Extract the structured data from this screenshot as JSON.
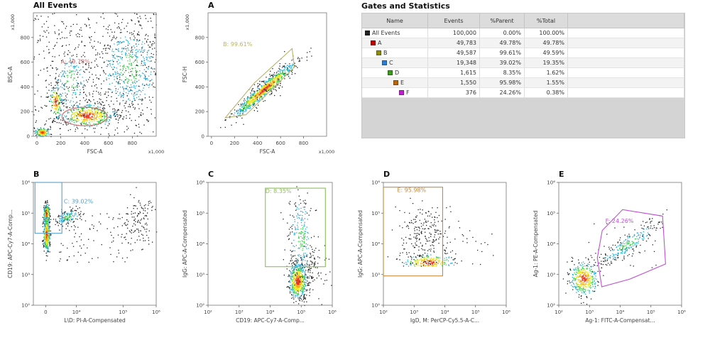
{
  "stats_panel": {
    "title": "Gates and Statistics",
    "columns": [
      "Name",
      "Events",
      "%Parent",
      "%Total"
    ],
    "rows": [
      {
        "name": "All Events",
        "color": "#222222",
        "level": 0,
        "events": "100,000",
        "parent": "0.00%",
        "total": "100.00%"
      },
      {
        "name": "A",
        "color": "#c00000",
        "level": 1,
        "events": "49,783",
        "parent": "49.78%",
        "total": "49.78%"
      },
      {
        "name": "B",
        "color": "#8c8c10",
        "level": 2,
        "events": "49,587",
        "parent": "99.61%",
        "total": "49.59%"
      },
      {
        "name": "C",
        "color": "#2a7fd4",
        "level": 3,
        "events": "19,348",
        "parent": "39.02%",
        "total": "19.35%"
      },
      {
        "name": "D",
        "color": "#3a9a1a",
        "level": 4,
        "events": "1,615",
        "parent": "8.35%",
        "total": "1.62%"
      },
      {
        "name": "E",
        "color": "#b8660e",
        "level": 5,
        "events": "1,550",
        "parent": "95.98%",
        "total": "1.55%"
      },
      {
        "name": "F",
        "color": "#c020d0",
        "level": 6,
        "events": "376",
        "parent": "24.26%",
        "total": "0.38%"
      }
    ]
  },
  "chart_data": [
    {
      "type": "scatter",
      "title": "All Events",
      "xlabel": "FSC-A",
      "ylabel": "BSC-A",
      "x_multiplier": "x1,000",
      "y_multiplier": "x1,000",
      "x_scale": "linear",
      "y_scale": "linear",
      "xlim": [
        -30,
        1000
      ],
      "ylim": [
        0,
        1000
      ],
      "xticks": [
        0,
        200,
        400,
        600,
        800
      ],
      "xtick_labels": [
        "0",
        "200",
        "400",
        "600",
        "800"
      ],
      "yticks": [
        0,
        200,
        400,
        600,
        800
      ],
      "ytick_labels": [
        "0",
        "200",
        "400",
        "600",
        "800"
      ],
      "gate": {
        "name": "A",
        "label": "A: 49.78%",
        "shape": "ellipse",
        "center": [
          400,
          160
        ],
        "radii": [
          190,
          75
        ],
        "label_at": [
          200,
          630
        ],
        "color": "#c96a6a"
      }
    },
    {
      "type": "scatter",
      "title": "A",
      "xlabel": "FSC-A",
      "ylabel": "FSC-H",
      "x_multiplier": "x1,000",
      "y_multiplier": "x1,000",
      "x_scale": "linear",
      "y_scale": "linear",
      "xlim": [
        -30,
        1000
      ],
      "ylim": [
        0,
        1000
      ],
      "xticks": [
        0,
        200,
        400,
        600,
        800
      ],
      "xtick_labels": [
        "0",
        "200",
        "400",
        "600",
        "800"
      ],
      "yticks": [
        0,
        200,
        400,
        600,
        800
      ],
      "ytick_labels": [
        "0",
        "200",
        "400",
        "600",
        "800"
      ],
      "gate": {
        "name": "B",
        "label": "B: 99.61%",
        "shape": "polygon",
        "points": [
          [
            120,
            150
          ],
          [
            300,
            175
          ],
          [
            720,
            560
          ],
          [
            700,
            710
          ],
          [
            370,
            430
          ]
        ],
        "label_at": [
          100,
          770
        ],
        "color": "#b9b46a"
      }
    },
    {
      "type": "scatter",
      "title": "B",
      "xlabel": "L\\D: PI-A-Compensated",
      "ylabel": "CD19: APC-Cy7-A-Comp...",
      "x_scale": "biexponential",
      "y_scale": "log",
      "xlim": [
        -3000,
        1000000
      ],
      "ylim": [
        100,
        1000000
      ],
      "xticks": [
        0,
        10000,
        100000,
        1000000
      ],
      "xtick_labels": [
        "0",
        "10⁴",
        "10⁵",
        "10⁶"
      ],
      "yticks": [
        100,
        1000,
        10000,
        100000,
        1000000
      ],
      "ytick_labels": [
        "10²",
        "10³",
        "10⁴",
        "10⁵",
        "10⁶"
      ],
      "gate": {
        "name": "C",
        "label": "C: 39.02%",
        "shape": "rectangle",
        "x_range": [
          -2600,
          2800
        ],
        "y_range": [
          22000,
          1000000
        ],
        "label_at": [
          3500,
          300000
        ],
        "color": "#5aa0c8"
      }
    },
    {
      "type": "scatter",
      "title": "C",
      "xlabel": "CD19: APC-Cy7-A-Comp...",
      "ylabel": "IgG: APC-A-Compensated",
      "x_scale": "log",
      "y_scale": "log",
      "xlim": [
        100,
        1000000
      ],
      "ylim": [
        100,
        1000000
      ],
      "xticks": [
        100,
        1000,
        10000,
        100000,
        1000000
      ],
      "xtick_labels": [
        "10²",
        "10³",
        "10⁴",
        "10⁵",
        "10⁶"
      ],
      "yticks": [
        100,
        1000,
        10000,
        100000,
        1000000
      ],
      "ytick_labels": [
        "10²",
        "10³",
        "10⁴",
        "10⁵",
        "10⁶"
      ],
      "gate": {
        "name": "D",
        "label": "D: 8.35%",
        "shape": "rectangle",
        "x_range": [
          7000,
          600000
        ],
        "y_range": [
          1800,
          650000
        ],
        "label_at": [
          7000,
          650000
        ],
        "color": "#8fbf5a"
      }
    },
    {
      "type": "scatter",
      "title": "D",
      "xlabel": "IgD, M: PerCP-Cy5.5-A-C...",
      "ylabel": "IgG: APC-A-Compensated",
      "x_scale": "log",
      "y_scale": "log",
      "xlim": [
        100,
        1000000
      ],
      "ylim": [
        100,
        1000000
      ],
      "xticks": [
        100,
        1000,
        10000,
        100000,
        1000000
      ],
      "xtick_labels": [
        "10²",
        "10³",
        "10⁴",
        "10⁵",
        "10⁶"
      ],
      "yticks": [
        100,
        1000,
        10000,
        100000,
        1000000
      ],
      "ytick_labels": [
        "10²",
        "10³",
        "10⁴",
        "10⁵",
        "10⁶"
      ],
      "gate": {
        "name": "E",
        "label": "E: 95.98%",
        "shape": "rectangle",
        "x_range": [
          100,
          8500
        ],
        "y_range": [
          900,
          700000
        ],
        "label_at": [
          280,
          700000
        ],
        "color": "#c8893a"
      }
    },
    {
      "type": "scatter",
      "title": "E",
      "xlabel": "Ag-1: FITC-A-Compensat...",
      "ylabel": "Ag-1: PE-A-Compensated",
      "x_scale": "log",
      "y_scale": "log",
      "xlim": [
        100,
        1000000
      ],
      "ylim": [
        100,
        1000000
      ],
      "xticks": [
        100,
        1000,
        10000,
        100000,
        1000000
      ],
      "xtick_labels": [
        "10²",
        "10³",
        "10⁴",
        "10⁵",
        "10⁶"
      ],
      "yticks": [
        100,
        1000,
        10000,
        100000,
        1000000
      ],
      "ytick_labels": [
        "10²",
        "10³",
        "10⁴",
        "10⁵",
        "10⁶"
      ],
      "gate": {
        "name": "F",
        "label": "F: 24.26%",
        "shape": "polygon",
        "points": [
          [
            2500,
            400
          ],
          [
            1800,
            3500
          ],
          [
            2600,
            27000
          ],
          [
            12000,
            130000
          ],
          [
            240000,
            80000
          ],
          [
            300000,
            2200
          ],
          [
            20000,
            700
          ]
        ],
        "label_at": [
          3300,
          70000
        ],
        "color": "#c050d8"
      }
    }
  ]
}
